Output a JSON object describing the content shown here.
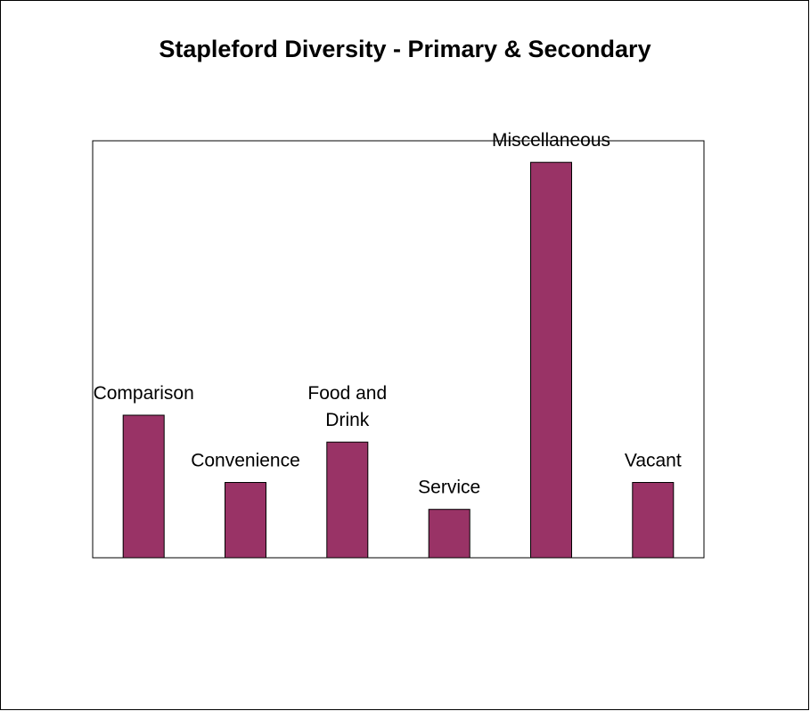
{
  "chart_data": {
    "type": "bar",
    "title": "Stapleford Diversity - Primary & Secondary",
    "categories": [
      "Comparison",
      "Convenience",
      "Food and Drink",
      "Service",
      "Miscellaneous",
      "Vacant"
    ],
    "label_lines": [
      [
        "Comparison"
      ],
      [
        "Convenience"
      ],
      [
        "Food and",
        "Drink"
      ],
      [
        "Service"
      ],
      [
        "Miscellaneous"
      ],
      [
        "Vacant"
      ]
    ],
    "values": [
      5.3,
      2.8,
      4.3,
      1.8,
      14.7,
      2.8
    ],
    "ylim": [
      0,
      15.5
    ],
    "grid": false,
    "legend": "none",
    "bar_color": "#993366",
    "bar_edge_color": "#000000"
  }
}
